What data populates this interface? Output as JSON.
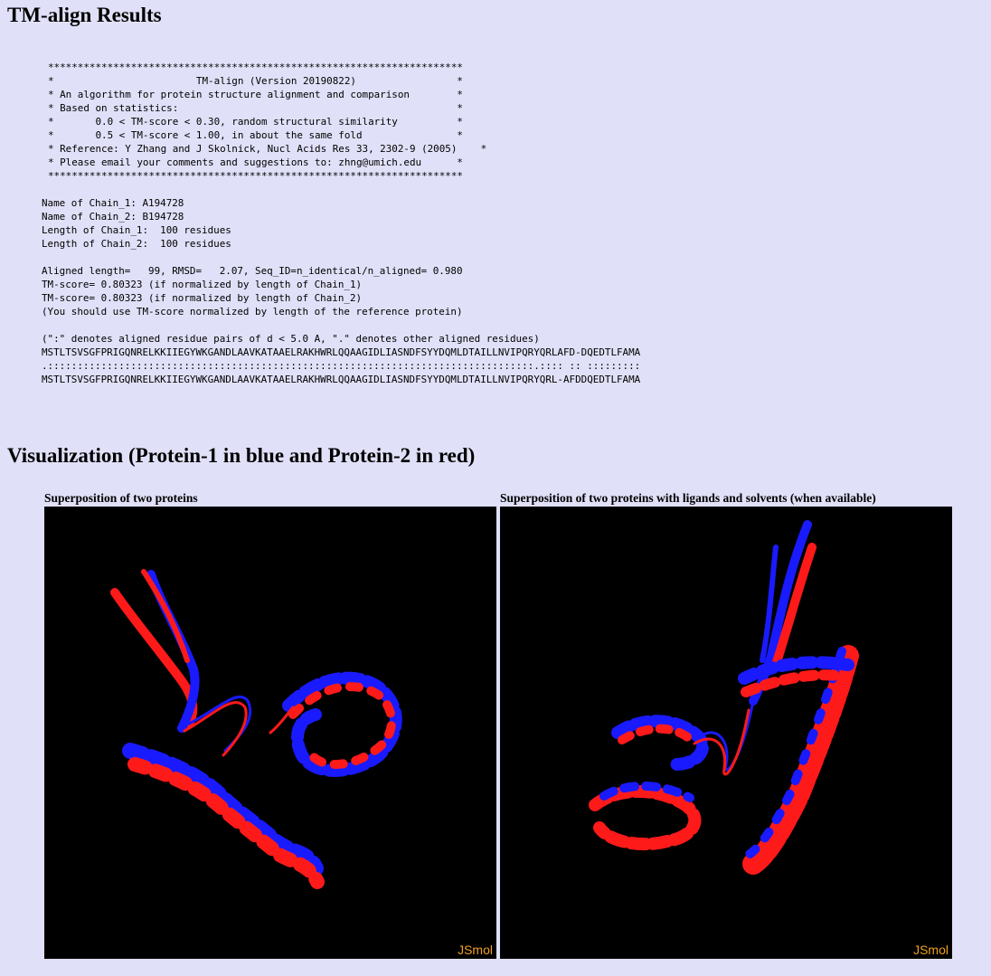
{
  "page_title": "TM-align Results",
  "banner": [
    "**********************************************************************",
    "*                        TM-align (Version 20190822)                 *",
    "* An algorithm for protein structure alignment and comparison        *",
    "* Based on statistics:                                               *",
    "*       0.0 < TM-score < 0.30, random structural similarity          *",
    "*       0.5 < TM-score < 1.00, in about the same fold                *",
    "* Reference: Y Zhang and J Skolnick, Nucl Acids Res 33, 2302-9 (2005)    *",
    "* Please email your comments and suggestions to: zhng@umich.edu      *",
    "**********************************************************************"
  ],
  "chain_info": [
    "Name of Chain_1: A194728",
    "Name of Chain_2: B194728",
    "Length of Chain_1:  100 residues",
    "Length of Chain_2:  100 residues"
  ],
  "scores": [
    "Aligned length=   99, RMSD=   2.07, Seq_ID=n_identical/n_aligned= 0.980",
    "TM-score= 0.80323 (if normalized by length of Chain_1)",
    "TM-score= 0.80323 (if normalized by length of Chain_2)",
    "(You should use TM-score normalized by length of the reference protein)"
  ],
  "alignment": {
    "legend": "(\":\" denotes aligned residue pairs of d < 5.0 A, \".\" denotes other aligned residues)",
    "seq1": "MSTLTSVSGFPRIGQNRELKKIIEGYWKGANDLAAVKATAAELRAKHWRLQQAAGIDLIASNDFSYYDQMLDTAILLNVIPQRYQRLAFD-DQEDTLFAMA",
    "match": ".::::::::::::::::::::::::::::::::::::::::::::::::::::::::::::::::::::::::::::::::::.:::: :: :::::::::",
    "seq2": "MSTLTSVSGFPRIGQNRELKKIIEGYWKGANDLAAVKATAAELRAKHWRLQQAAGIDLIASNDFSYYDQMLDTAILLNVIPQRYQRL-AFDDQEDTLFAMA"
  },
  "visualization": {
    "title": "Visualization (Protein-1 in blue and Protein-2 in red)",
    "panel1_label": "Superposition of two proteins",
    "panel2_label": "Superposition of two proteins with ligands and solvents (when available)",
    "watermark": "JSmol",
    "colors": {
      "protein1": "#1a1aff",
      "protein2": "#ff1a1a",
      "background": "#000000",
      "watermark": "#f0a020"
    }
  }
}
